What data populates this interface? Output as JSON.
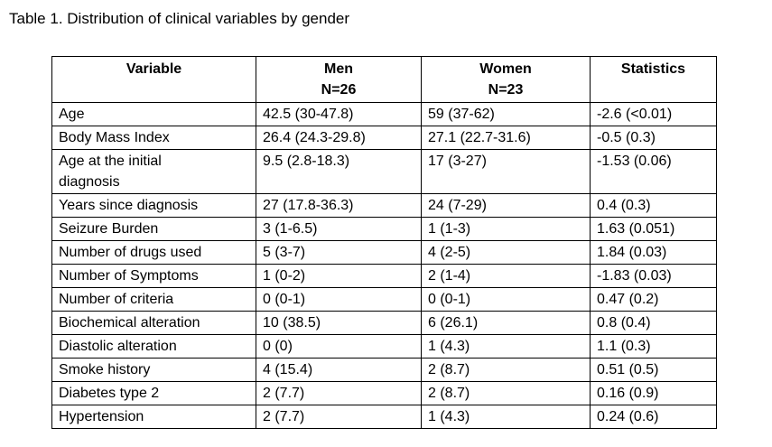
{
  "title": "Table 1. Distribution of clinical variables by gender",
  "colors": {
    "background": "#ffffff",
    "text": "#000000",
    "border": "#000000"
  },
  "table": {
    "columns": [
      {
        "label": "Variable",
        "sublabel": ""
      },
      {
        "label": "Men",
        "sublabel": "N=26"
      },
      {
        "label": "Women",
        "sublabel": "N=23"
      },
      {
        "label": "Statistics",
        "sublabel": ""
      }
    ],
    "rows": [
      {
        "variable": "Age",
        "men": "42.5 (30-47.8)",
        "women": "59 (37-62)",
        "statistics": "-2.6 (<0.01)"
      },
      {
        "variable": "Body Mass Index",
        "men": "26.4 (24.3-29.8)",
        "women": "27.1 (22.7-31.6)",
        "statistics": "-0.5 (0.3)"
      },
      {
        "variable": "Age at the initial diagnosis",
        "men": "9.5 (2.8-18.3)",
        "women": "17 (3-27)",
        "statistics": "-1.53 (0.06)"
      },
      {
        "variable": "Years since diagnosis",
        "men": "27 (17.8-36.3)",
        "women": "24 (7-29)",
        "statistics": "0.4 (0.3)"
      },
      {
        "variable": "Seizure Burden",
        "men": "3 (1-6.5)",
        "women": "1 (1-3)",
        "statistics": "1.63 (0.051)"
      },
      {
        "variable": "Number of drugs used",
        "men": "5 (3-7)",
        "women": "4 (2-5)",
        "statistics": "1.84 (0.03)"
      },
      {
        "variable": "Number of Symptoms",
        "men": "1 (0-2)",
        "women": "2 (1-4)",
        "statistics": "-1.83 (0.03)"
      },
      {
        "variable": "Number of criteria",
        "men": "0 (0-1)",
        "women": "0 (0-1)",
        "statistics": "0.47 (0.2)"
      },
      {
        "variable": "Biochemical alteration",
        "men": "10 (38.5)",
        "women": "6 (26.1)",
        "statistics": "0.8 (0.4)"
      },
      {
        "variable": "Diastolic alteration",
        "men": "0 (0)",
        "women": "1 (4.3)",
        "statistics": "1.1 (0.3)"
      },
      {
        "variable": "Smoke history",
        "men": "4 (15.4)",
        "women": "2 (8.7)",
        "statistics": "0.51 (0.5)"
      },
      {
        "variable": "Diabetes type 2",
        "men": "2 (7.7)",
        "women": "2 (8.7)",
        "statistics": "0.16 (0.9)"
      },
      {
        "variable": "Hypertension",
        "men": "2 (7.7)",
        "women": "1 (4.3)",
        "statistics": "0.24 (0.6)"
      }
    ]
  }
}
